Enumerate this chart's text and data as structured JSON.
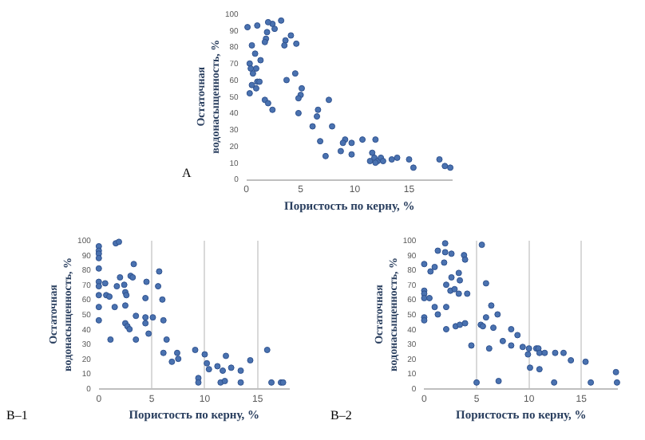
{
  "chart_data": [
    {
      "type": "scatter",
      "title": "А",
      "xlabel": "Пористость по керну, %",
      "ylabel": "Остаточная\nводонасыщенность, %",
      "color": "#4a72b0",
      "marker": "circle",
      "grid": false,
      "xlim": [
        0,
        19
      ],
      "xticks": [
        0,
        5,
        10,
        15
      ],
      "ylim": [
        0,
        100
      ],
      "yticks": [
        0,
        10,
        20,
        30,
        40,
        50,
        60,
        70,
        80,
        90,
        100
      ],
      "x": [
        0.1,
        1,
        2.4,
        2,
        3.2,
        2.6,
        1.9,
        1.8,
        1.7,
        0.5,
        4.1,
        3.6,
        3.5,
        4.6,
        0.8,
        1.3,
        0.3,
        0.4,
        0.9,
        0.6,
        1,
        1.2,
        0.9,
        0.3,
        0.5,
        1.7,
        2,
        2.4,
        3.7,
        4.5,
        5.1,
        5,
        4.8,
        4.8,
        7.6,
        6.6,
        6.5,
        6.1,
        7.9,
        6.8,
        7.3,
        9.1,
        8.9,
        8.7,
        9.7,
        9.7,
        10.7,
        11.9,
        11.6,
        11.4,
        11.8,
        12.1,
        12.4,
        11.9,
        12.6,
        13.4,
        13.9,
        15,
        15.4,
        17.8,
        18.3,
        18.8
      ],
      "values": [
        92,
        93,
        94,
        95,
        96,
        91,
        89,
        85,
        83,
        81,
        87,
        84,
        81,
        82,
        76,
        72,
        70,
        67,
        67,
        64,
        59,
        59,
        55,
        52,
        57,
        48,
        46,
        42,
        60,
        64,
        55,
        51,
        49,
        40,
        48,
        42,
        38,
        32,
        32,
        23,
        14,
        24,
        22,
        17,
        22,
        15,
        24,
        24,
        16,
        11,
        13,
        11,
        13,
        10,
        11,
        12,
        13,
        12,
        7,
        12,
        8,
        7
      ]
    },
    {
      "type": "scatter",
      "title": "В–1",
      "xlabel": "Пористость по керну, %",
      "ylabel": "Остаточная\nводонасыщенность, %",
      "color": "#4a72b0",
      "marker": "circle",
      "grid": "x",
      "xlim": [
        0,
        18
      ],
      "xticks": [
        0,
        5,
        10,
        15
      ],
      "ylim": [
        0,
        100
      ],
      "yticks": [
        0,
        10,
        20,
        30,
        40,
        50,
        60,
        70,
        80,
        90,
        100
      ],
      "x": [
        0,
        0,
        0,
        0,
        0,
        0,
        0,
        0,
        0,
        0,
        0.6,
        0.7,
        1,
        1.1,
        1.5,
        1.6,
        1.9,
        1.7,
        2,
        2.4,
        2.5,
        2.6,
        2.5,
        2.5,
        2.7,
        2.9,
        3,
        3.2,
        3.3,
        3.5,
        3.5,
        4.4,
        4.5,
        4.4,
        4.4,
        4.7,
        5.1,
        5.7,
        5.6,
        6,
        6.1,
        6.1,
        6.4,
        6.9,
        7.4,
        7.5,
        9.1,
        9.4,
        9.4,
        10,
        10.2,
        10.4,
        11.2,
        11.5,
        11.9,
        12,
        12.5,
        11.7,
        13.4,
        13.4,
        14.3,
        15.9,
        16.3,
        17.2,
        17.4
      ],
      "values": [
        96,
        93,
        91,
        88,
        81,
        72,
        69,
        63,
        55,
        46,
        71,
        63,
        62,
        33,
        55,
        98,
        99,
        69,
        75,
        70,
        65,
        63,
        56,
        44,
        42,
        40,
        76,
        75,
        84,
        49,
        33,
        61,
        72,
        48,
        44,
        37,
        48,
        79,
        69,
        60,
        46,
        24,
        33,
        18,
        24,
        20,
        26,
        7,
        4,
        23,
        17,
        13,
        15,
        4,
        5,
        22,
        14,
        12,
        12,
        4,
        19,
        26,
        4,
        4,
        4
      ]
    },
    {
      "type": "scatter",
      "title": "В–2",
      "xlabel": "Пористость по керну, %",
      "ylabel": "Остаточная\nводонасыщенность, %",
      "color": "#4a72b0",
      "marker": "circle",
      "grid": "x",
      "xlim": [
        0,
        18.5
      ],
      "xticks": [
        0,
        5,
        10,
        15
      ],
      "ylim": [
        0,
        100
      ],
      "yticks": [
        0,
        10,
        20,
        30,
        40,
        50,
        60,
        70,
        80,
        90,
        100
      ],
      "x": [
        0,
        0,
        0,
        0,
        0,
        0,
        0.5,
        0.6,
        1,
        1,
        1.3,
        1.3,
        1.9,
        2,
        2,
        2.6,
        2.1,
        2.1,
        2.1,
        2.6,
        2.5,
        2.9,
        3,
        3.3,
        3.3,
        3.4,
        3.4,
        3.8,
        3.9,
        4.1,
        3.9,
        4.5,
        5,
        5.5,
        5.9,
        5.4,
        5.6,
        5.9,
        6.2,
        6.4,
        6.6,
        7,
        7.1,
        7.5,
        8.3,
        8.3,
        8.9,
        9.4,
        9.9,
        10,
        10.1,
        10.7,
        10.9,
        11,
        11,
        11.5,
        12.4,
        12.5,
        13.3,
        14,
        15.4,
        15.9,
        18.3,
        18.4
      ],
      "values": [
        84,
        66,
        64,
        61,
        48,
        46,
        61,
        79,
        82,
        55,
        50,
        93,
        85,
        98,
        92,
        91,
        70,
        55,
        40,
        75,
        66,
        67,
        42,
        78,
        64,
        73,
        43,
        90,
        87,
        64,
        44,
        29,
        4,
        97,
        71,
        43,
        42,
        48,
        27,
        56,
        41,
        50,
        5,
        32,
        40,
        29,
        36,
        28,
        23,
        27,
        14,
        27,
        27,
        24,
        13,
        24,
        4,
        24,
        24,
        19,
        18,
        4,
        11,
        4
      ]
    }
  ]
}
